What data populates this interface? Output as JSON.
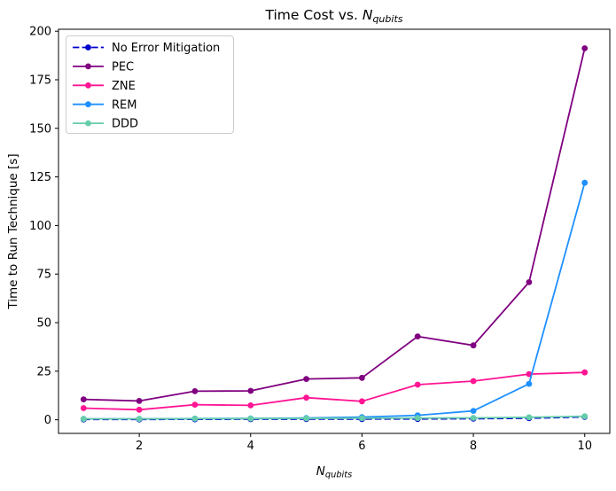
{
  "figure": {
    "title_prefix": "Time Cost vs. ",
    "title_var": "N",
    "title_sub": "qubits",
    "xlabel_var": "N",
    "xlabel_sub": "qubits",
    "ylabel": "Time to Run Technique [s]",
    "background_color": "#ffffff",
    "axes_edge_color": "#000000",
    "legend_border_color": "#cccccc"
  },
  "chart_data": {
    "type": "line",
    "title": "Time Cost vs. N_qubits",
    "xlabel": "N_qubits",
    "ylabel": "Time to Run Technique [s]",
    "x": [
      1,
      2,
      3,
      4,
      5,
      6,
      7,
      8,
      9,
      10
    ],
    "series": [
      {
        "name": "No Error Mitigation",
        "color": "#0000cd",
        "linestyle": "dashed",
        "marker": "circle",
        "values": [
          0.2,
          0.2,
          0.25,
          0.3,
          0.35,
          0.4,
          0.45,
          0.55,
          0.8,
          1.5
        ]
      },
      {
        "name": "PEC",
        "color": "#800080",
        "linestyle": "solid",
        "marker": "circle",
        "values": [
          10.5,
          9.7,
          14.7,
          14.9,
          21.0,
          21.6,
          42.9,
          38.3,
          70.8,
          191.2
        ]
      },
      {
        "name": "ZNE",
        "color": "#ff1493",
        "linestyle": "solid",
        "marker": "circle",
        "values": [
          6.0,
          5.2,
          7.8,
          7.4,
          11.4,
          9.5,
          18.1,
          19.9,
          23.5,
          24.4
        ]
      },
      {
        "name": "REM",
        "color": "#1e90ff",
        "linestyle": "solid",
        "marker": "circle",
        "values": [
          0.5,
          0.5,
          0.6,
          0.7,
          0.9,
          1.4,
          2.3,
          4.6,
          18.5,
          122.0
        ]
      },
      {
        "name": "DDD",
        "color": "#66cdaa",
        "linestyle": "solid",
        "marker": "circle",
        "values": [
          0.5,
          0.5,
          0.55,
          0.6,
          0.7,
          0.8,
          0.9,
          1.0,
          1.3,
          1.8
        ]
      }
    ],
    "xticks": [
      2,
      4,
      6,
      8,
      10
    ],
    "yticks": [
      0,
      25,
      50,
      75,
      100,
      125,
      150,
      175,
      200
    ],
    "xlim": [
      0.55,
      10.45
    ],
    "ylim": [
      -7,
      201
    ],
    "grid": false,
    "legend_position": "upper left",
    "legend_entries": [
      "No Error Mitigation",
      "PEC",
      "ZNE",
      "REM",
      "DDD"
    ]
  }
}
